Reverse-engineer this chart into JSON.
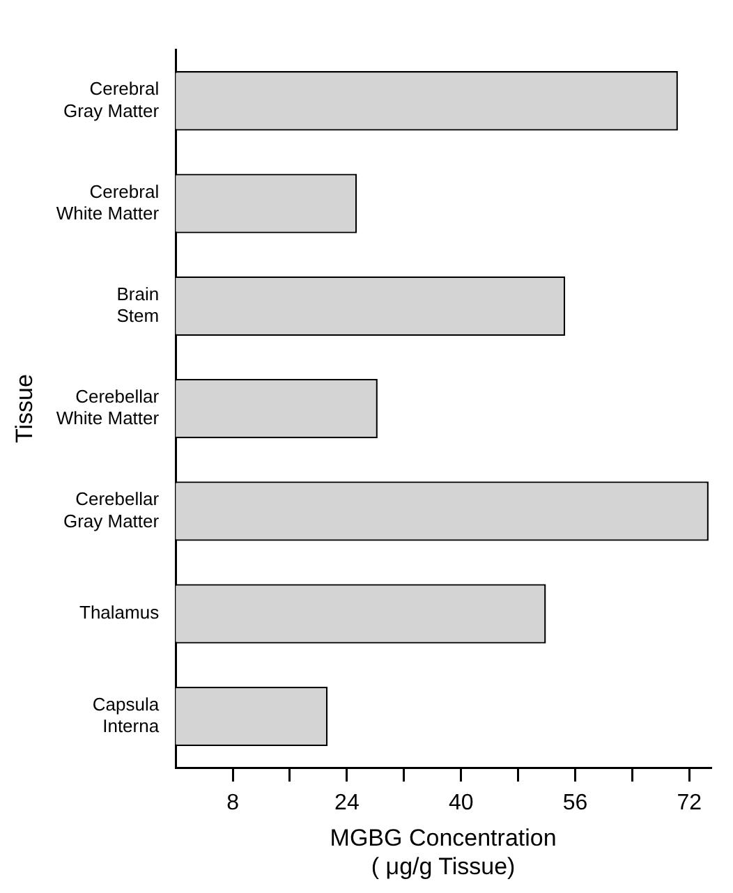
{
  "chart_data": {
    "type": "bar",
    "orientation": "horizontal",
    "categories": [
      "Cerebral Gray Matter",
      "Cerebral White Matter",
      "Brain Stem",
      "Cerebellar White Matter",
      "Cerebellar Gray Matter",
      "Thalamus",
      "Capsula Interna"
    ],
    "values": [
      70.4,
      25.4,
      54.6,
      28.3,
      74.7,
      51.9,
      21.3
    ],
    "color": "#d4d4d4",
    "xlim": [
      0,
      75
    ],
    "xticks": [
      8,
      {
        "value": 16,
        "label": null
      },
      24,
      {
        "value": 32,
        "label": null
      },
      40,
      {
        "value": 48,
        "label": null
      },
      56,
      {
        "value": 64,
        "label": null
      },
      72
    ],
    "xlabel": "MGBG Concentration\n( μg/g Tissue)",
    "ylabel": "Tissue",
    "grid": false,
    "legend": false
  }
}
